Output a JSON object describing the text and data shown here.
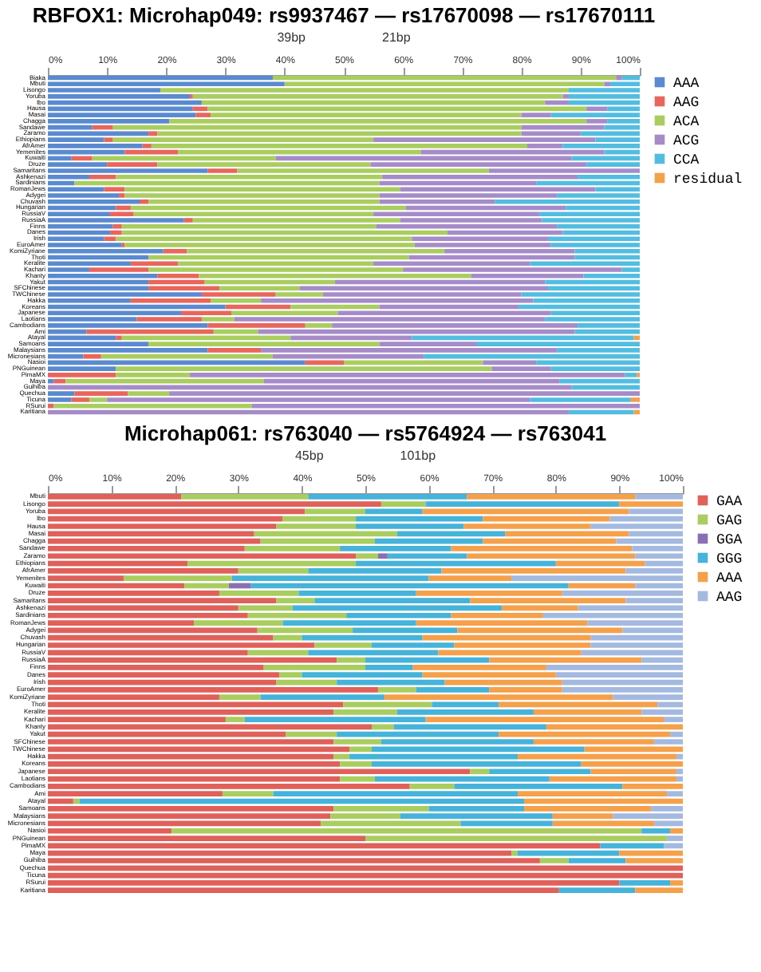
{
  "chart_data": [
    {
      "type": "bar",
      "orientation": "horizontal",
      "stacked": true,
      "title": "RBFOX1: Microhap049: rs9937467 — rs17670098 — rs17670111",
      "annotations": [
        "39bp",
        "21bp"
      ],
      "legend": "right",
      "categories": [
        "Biaka",
        "Mbuti",
        "Lisongo",
        "Yoruba",
        "Ibo",
        "Hausa",
        "Masai",
        "Chagga",
        "Sandawe",
        "Zaramo",
        "Ethiopians",
        "AfrAmer",
        "Yemenites",
        "Kuwaiti",
        "Druze",
        "Samaritans",
        "Ashkenazi",
        "Sardinians",
        "RomanJews",
        "Adygei",
        "Chuvash",
        "Hungarian",
        "RussiaV",
        "RussiaA",
        "Finns",
        "Danes",
        "Irish",
        "EuroAmer",
        "KomiZyriane",
        "Thoti",
        "Keralite",
        "Kachari",
        "Khanty",
        "Yakut",
        "SFChinese",
        "TWChinese",
        "Hakka",
        "Koreans",
        "Japanese",
        "Laotians",
        "Cambodians",
        "Ami",
        "Atayal",
        "Samoans",
        "Malaysians",
        "Micronesians",
        "Nasioi",
        "PNGuinean",
        "PimaMX",
        "Maya",
        "Guihiba",
        "Quechua",
        "Ticuna",
        "RSurui",
        "Karitiana"
      ],
      "xlim": [
        0,
        100
      ],
      "xticks": [
        {
          "value": 0,
          "label": "0%"
        },
        {
          "value": 10,
          "label": "10%"
        },
        {
          "value": 20,
          "label": "20%"
        },
        {
          "value": 30,
          "label": "30%"
        },
        {
          "value": 40,
          "label": "40%"
        },
        {
          "value": 50,
          "label": "50%"
        },
        {
          "value": 60,
          "label": "60%"
        },
        {
          "value": 70,
          "label": "70%"
        },
        {
          "value": 80,
          "label": "80%"
        },
        {
          "value": 90,
          "label": "90%"
        },
        {
          "value": 100,
          "label": "100%"
        }
      ],
      "series": [
        {
          "name": "AAA",
          "color": "#5a8ad0",
          "values": [
            38,
            40,
            19,
            24,
            26,
            24.5,
            25,
            20.5,
            7.5,
            17,
            9.5,
            16,
            13,
            4,
            10,
            27,
            7,
            4.5,
            9.5,
            12,
            15.5,
            11.5,
            10.5,
            23,
            11,
            10.5,
            9.5,
            12.5,
            19.5,
            17,
            14,
            7,
            18.5,
            17,
            17,
            26,
            14,
            30,
            22.5,
            15,
            27,
            6.5,
            11.5,
            17,
            27,
            6,
            43.5,
            11.5,
            0,
            1,
            0,
            4.5,
            4,
            0,
            0
          ]
        },
        {
          "name": "AAG",
          "color": "#e8665c",
          "values": [
            0,
            0,
            0,
            0.5,
            0,
            2.5,
            2.5,
            0,
            3.5,
            1.5,
            1.5,
            1.5,
            9,
            3.5,
            8.5,
            5,
            4.5,
            0,
            3.5,
            1,
            1.5,
            2.5,
            4,
            1.5,
            1.5,
            2,
            2,
            0.5,
            4,
            0,
            8,
            10,
            7,
            9.5,
            12,
            12.5,
            13.5,
            11,
            8.5,
            11,
            16.5,
            21.5,
            1,
            0,
            9,
            3,
            6.5,
            0,
            11.5,
            2,
            0,
            9,
            3,
            1,
            0
          ]
        },
        {
          "name": "ACA",
          "color": "#a9cd5f",
          "values": [
            58,
            54,
            69,
            62.5,
            58,
            64,
            52.5,
            70.5,
            69,
            61.5,
            44,
            63.5,
            41,
            31,
            36,
            42.5,
            45,
            51.5,
            46.5,
            43,
            39,
            46.5,
            40.5,
            35,
            43,
            55,
            50,
            49,
            43.5,
            44,
            33,
            43,
            46,
            22,
            13.5,
            8,
            8.5,
            15,
            18,
            5.5,
            4.5,
            7.5,
            28.5,
            39,
            0,
            29,
            23.5,
            63.5,
            12.5,
            33.5,
            0,
            7,
            3,
            33.5,
            0
          ]
        },
        {
          "name": "ACG",
          "color": "#a68bc9",
          "values": [
            1,
            1,
            0,
            1,
            4,
            3.5,
            5,
            3.5,
            14,
            10,
            37.5,
            6,
            31,
            50,
            36.5,
            25.5,
            33,
            26.5,
            33,
            30,
            19.5,
            27,
            28,
            24,
            30.5,
            19.5,
            23,
            23,
            22,
            28,
            26.5,
            37,
            19,
            35.5,
            42,
            33.5,
            46,
            23.5,
            36,
            52.5,
            41.5,
            53.5,
            20.5,
            16.5,
            50,
            25.5,
            9,
            10,
            73.5,
            50,
            88.5,
            79.5,
            71.5,
            65.5,
            88
          ]
        },
        {
          "name": "CCA",
          "color": "#52bde0",
          "values": [
            3,
            5,
            12,
            12,
            12,
            5.5,
            15,
            5.5,
            6,
            10,
            7.5,
            13,
            6,
            11.5,
            9,
            0,
            10.5,
            17.5,
            7.5,
            14,
            24.5,
            12.5,
            17,
            16.5,
            14,
            13,
            15.5,
            15,
            11,
            11,
            18.5,
            3,
            9.5,
            16,
            15.5,
            20,
            18,
            20.5,
            15,
            16,
            10.5,
            11,
            37.5,
            27.5,
            14,
            36.5,
            17.5,
            15,
            2,
            13.5,
            11.5,
            0,
            17,
            0,
            11
          ]
        },
        {
          "name": "residual",
          "color": "#f5a04a",
          "values": [
            0,
            0,
            0,
            0,
            0,
            0,
            0,
            0,
            0,
            0,
            0,
            0,
            0,
            0,
            0,
            0,
            0,
            0,
            0,
            0,
            0,
            0,
            0,
            0,
            0,
            0,
            0,
            0,
            0,
            0,
            0,
            0,
            0,
            0,
            0,
            0,
            0,
            0,
            0,
            0,
            0,
            0,
            1,
            0,
            0,
            0,
            0,
            0,
            0.5,
            0,
            0,
            0,
            1.5,
            0,
            1
          ]
        }
      ]
    },
    {
      "type": "bar",
      "orientation": "horizontal",
      "stacked": true,
      "title": "Microhap061: rs763040 — rs5764924 — rs763041",
      "annotations": [
        "45bp",
        "101bp"
      ],
      "legend": "right",
      "categories": [
        "Mbuti",
        "Lisongo",
        "Yoruba",
        "Ibo",
        "Hausa",
        "Masai",
        "Chagga",
        "Sandawe",
        "Zaramo",
        "Ethiopians",
        "AfrAmer",
        "Yemenites",
        "Kuwaiti",
        "Druze",
        "Samaritans",
        "Ashkenazi",
        "Sardinians",
        "RomanJews",
        "Adygei",
        "Chuvash",
        "Hungarian",
        "RussiaV",
        "RussiaA",
        "Finns",
        "Danes",
        "Irish",
        "EuroAmer",
        "KomiZyriane",
        "Thoti",
        "Keralite",
        "Kachari",
        "Khanty",
        "Yakut",
        "SFChinese",
        "TWChinese",
        "Hakka",
        "Koreans",
        "Japanese",
        "Laotians",
        "Cambodians",
        "Ami",
        "Atayal",
        "Samoans",
        "Malaysians",
        "Micronesians",
        "Nasioi",
        "PNGuinean",
        "PimaMX",
        "Maya",
        "Guihiba",
        "Quechua",
        "Ticuna",
        "RSurui",
        "Karitiana"
      ],
      "xlim": [
        0,
        100
      ],
      "xticks": [
        {
          "value": 0,
          "label": "0%"
        },
        {
          "value": 10,
          "label": "10%"
        },
        {
          "value": 20,
          "label": "20%"
        },
        {
          "value": 30,
          "label": "30%"
        },
        {
          "value": 40,
          "label": "40%"
        },
        {
          "value": 50,
          "label": "50%"
        },
        {
          "value": 60,
          "label": "60%"
        },
        {
          "value": 70,
          "label": "70%"
        },
        {
          "value": 80,
          "label": "80%"
        },
        {
          "value": 90,
          "label": "90%"
        },
        {
          "value": 100,
          "label": "100%"
        }
      ],
      "series": [
        {
          "name": "GAA",
          "color": "#e0605a",
          "values": [
            21,
            52.5,
            40.5,
            37,
            36,
            32.5,
            33.5,
            31,
            48.5,
            22,
            30,
            12,
            21.5,
            27,
            36,
            30,
            31.5,
            23,
            33,
            35.5,
            42,
            31.5,
            45.5,
            34,
            36.5,
            36,
            52,
            27,
            46.5,
            45,
            28,
            51,
            37.5,
            45,
            47.5,
            45,
            46,
            66.5,
            46,
            57,
            27.5,
            4,
            45,
            44.5,
            43,
            19.5,
            50,
            87,
            73,
            77.5,
            100,
            100,
            90,
            80.5
          ]
        },
        {
          "name": "GAG",
          "color": "#a9cd5f",
          "values": [
            20,
            7,
            9.5,
            11.5,
            12.5,
            22.5,
            18,
            15,
            3.5,
            26.5,
            11,
            17,
            7,
            12.5,
            6,
            8.5,
            15.5,
            14,
            15,
            4.5,
            9,
            9.5,
            4.5,
            16,
            3.5,
            9.5,
            6,
            6.5,
            14,
            10,
            3,
            3.5,
            8,
            7.5,
            3.5,
            2.5,
            5,
            3,
            5.5,
            7,
            8,
            1,
            15,
            11,
            22,
            74,
            47.5,
            0,
            1,
            4.5,
            0,
            0,
            0,
            0
          ]
        },
        {
          "name": "GGA",
          "color": "#8a6fb5",
          "values": [
            0,
            0,
            0,
            0,
            0,
            0,
            0,
            0,
            1.5,
            0,
            0,
            0,
            3.5,
            0,
            0,
            0,
            0,
            0,
            0,
            0,
            0,
            0,
            0,
            0,
            0,
            0,
            0,
            0,
            0,
            0,
            0,
            0,
            0,
            0,
            0,
            0,
            0,
            0,
            0,
            0,
            0,
            0,
            0,
            0,
            0,
            0,
            0,
            0,
            0,
            0,
            0,
            0,
            0,
            0
          ]
        },
        {
          "name": "GGG",
          "color": "#45b3da",
          "values": [
            25,
            30.5,
            9,
            20,
            17,
            17,
            17,
            17.5,
            12.5,
            31.5,
            21,
            31,
            50,
            18.5,
            24.5,
            33,
            16.5,
            21,
            16.5,
            19,
            13,
            20.5,
            19.5,
            7.5,
            19,
            17,
            11.5,
            19.5,
            10.5,
            21.5,
            28.5,
            24,
            25.5,
            24,
            33.5,
            26.5,
            33,
            16,
            27.5,
            26.5,
            38.5,
            70,
            15,
            24,
            14.5,
            4.5,
            0,
            10,
            16,
            9,
            0,
            0,
            8,
            12
          ]
        },
        {
          "name": "AAA",
          "color": "#f5a04a",
          "values": [
            26.5,
            10,
            32.5,
            20,
            20,
            19.5,
            21,
            28.5,
            26.5,
            14,
            29,
            13,
            10.5,
            23,
            24.5,
            12,
            14.5,
            27,
            26,
            26.5,
            21.5,
            22.5,
            24,
            21,
            21,
            18.5,
            11.5,
            36,
            25,
            17,
            37.5,
            21.5,
            27,
            19,
            15.5,
            25,
            16,
            13.5,
            20,
            9.5,
            23.5,
            25,
            20,
            9.5,
            16,
            2,
            0,
            0,
            10,
            9,
            0,
            0,
            2,
            7.5
          ]
        },
        {
          "name": "AAG",
          "color": "#a3b9e0",
          "values": [
            7.5,
            0,
            8.5,
            11.5,
            14.5,
            8.5,
            10.5,
            8,
            7.5,
            6,
            9,
            27,
            7.5,
            19,
            9,
            16.5,
            22,
            15,
            9.5,
            14.5,
            14.5,
            16,
            6.5,
            21.5,
            20,
            19,
            19,
            11,
            4,
            6.5,
            3,
            0,
            2,
            4.5,
            0,
            1,
            0,
            1,
            1,
            0,
            2.5,
            0,
            5,
            11,
            4.5,
            0,
            2.5,
            3,
            0,
            0,
            0,
            0,
            0,
            0
          ]
        }
      ]
    }
  ]
}
